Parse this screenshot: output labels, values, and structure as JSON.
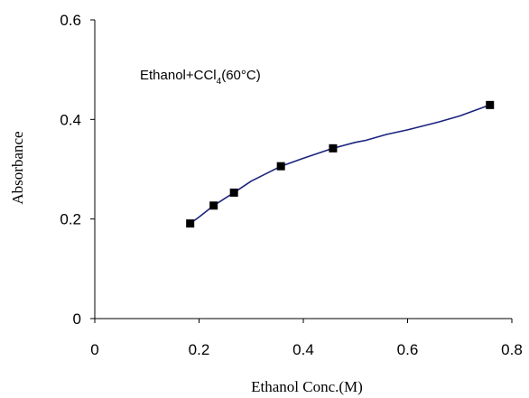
{
  "chart_data": {
    "type": "line",
    "xlabel": "Ethanol Conc.(M)",
    "ylabel": "Absorbance",
    "annotation": {
      "prefix": "Ethanol+CCl",
      "subscript": "4",
      "suffix": "(60°C)"
    },
    "xlim": [
      0,
      0.8
    ],
    "ylim": [
      0,
      0.6
    ],
    "x_ticks": [
      0,
      0.2,
      0.4,
      0.6,
      0.8
    ],
    "x_tick_labels": [
      "0",
      "0.2",
      "0.4",
      "0.6",
      "0.8"
    ],
    "y_ticks": [
      0,
      0.2,
      0.4,
      0.6
    ],
    "y_tick_labels": [
      "0",
      "0.2",
      "0.4",
      "0.6"
    ],
    "grid": false,
    "legend": "none",
    "series": [
      {
        "marker": "square",
        "line_color": "#1a237e",
        "marker_color": "#000000",
        "x": [
          0.183,
          0.228,
          0.267,
          0.357,
          0.457,
          0.758
        ],
        "y": [
          0.191,
          0.227,
          0.253,
          0.306,
          0.342,
          0.429
        ]
      }
    ],
    "curve": {
      "x": [
        0.183,
        0.2,
        0.228,
        0.267,
        0.3,
        0.357,
        0.4,
        0.457,
        0.5,
        0.52,
        0.56,
        0.6,
        0.66,
        0.7,
        0.758
      ],
      "y": [
        0.191,
        0.204,
        0.227,
        0.253,
        0.276,
        0.306,
        0.322,
        0.342,
        0.354,
        0.358,
        0.37,
        0.379,
        0.395,
        0.407,
        0.429
      ]
    }
  }
}
